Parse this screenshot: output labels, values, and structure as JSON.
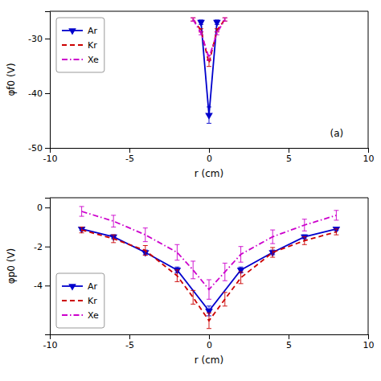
{
  "chart_data": [
    {
      "type": "line",
      "annotation": "(a)",
      "xlabel": "r (cm)",
      "ylabel": "φf0 (V)",
      "xlim": [
        -10,
        10
      ],
      "ylim": [
        -50,
        -25
      ],
      "xticks": [
        -10,
        -5,
        0,
        5,
        10
      ],
      "yticks": [
        -50,
        -40,
        -30
      ],
      "legend": "upper left",
      "series": [
        {
          "name": "Ar",
          "color": "#0000CC",
          "line_style": "solid",
          "marker": "triangle-down",
          "x": [
            -0.5,
            0,
            0.5
          ],
          "values": [
            -27.0,
            -44.0,
            -27.0
          ],
          "errors": [
            0.4,
            1.5,
            0.4
          ]
        },
        {
          "name": "Kr",
          "color": "#CC0000",
          "line_style": "dashed",
          "marker": "none",
          "x": [
            -1.0,
            -0.5,
            0,
            0.5,
            1.0
          ],
          "values": [
            -26.5,
            -28.5,
            -34.5,
            -28.5,
            -26.5
          ],
          "errors": [
            0.3,
            0.3,
            0.6,
            0.3,
            0.3
          ]
        },
        {
          "name": "Xe",
          "color": "#CC00CC",
          "line_style": "dashdot",
          "marker": "none",
          "x": [
            -1.0,
            -0.5,
            0,
            0.5,
            1.0
          ],
          "values": [
            -26.5,
            -29.0,
            -33.5,
            -29.0,
            -26.5
          ],
          "errors": [
            0.3,
            0.3,
            0.5,
            0.3,
            0.3
          ]
        }
      ]
    },
    {
      "type": "line",
      "xlabel": "r (cm)",
      "ylabel": "φp0 (V)",
      "xlim": [
        -10,
        10
      ],
      "ylim": [
        -6.5,
        0.5
      ],
      "xticks": [
        -10,
        -5,
        0,
        5,
        10
      ],
      "yticks": [
        -4,
        -2,
        0
      ],
      "legend": "lower left",
      "series": [
        {
          "name": "Ar",
          "color": "#0000CC",
          "line_style": "solid",
          "marker": "triangle-down",
          "x": [
            -8,
            -6,
            -4,
            -2,
            0,
            2,
            4,
            6,
            8
          ],
          "values": [
            -1.1,
            -1.5,
            -2.3,
            -3.2,
            -5.3,
            -3.2,
            -2.3,
            -1.5,
            -1.1
          ],
          "errors": [
            0.08,
            0.1,
            0.12,
            0.15,
            0.25,
            0.15,
            0.12,
            0.1,
            0.08
          ]
        },
        {
          "name": "Kr",
          "color": "#CC0000",
          "line_style": "dashed",
          "marker": "none",
          "x": [
            -8,
            -6,
            -4,
            -2,
            -1,
            0,
            1,
            2,
            4,
            6,
            8
          ],
          "values": [
            -1.15,
            -1.6,
            -2.2,
            -3.5,
            -4.6,
            -5.8,
            -4.7,
            -3.6,
            -2.3,
            -1.7,
            -1.25
          ],
          "errors": [
            0.15,
            0.2,
            0.25,
            0.3,
            0.35,
            0.4,
            0.35,
            0.3,
            0.25,
            0.2,
            0.15
          ]
        },
        {
          "name": "Xe",
          "color": "#CC00CC",
          "line_style": "dashdot",
          "marker": "none",
          "x": [
            -8,
            -6,
            -4,
            -2,
            -1,
            0,
            1,
            2,
            4,
            6,
            8
          ],
          "values": [
            -0.2,
            -0.7,
            -1.4,
            -2.3,
            -3.2,
            -4.2,
            -3.3,
            -2.4,
            -1.5,
            -0.9,
            -0.4
          ],
          "errors": [
            0.25,
            0.3,
            0.35,
            0.4,
            0.45,
            0.5,
            0.45,
            0.4,
            0.35,
            0.3,
            0.25
          ]
        }
      ]
    }
  ]
}
